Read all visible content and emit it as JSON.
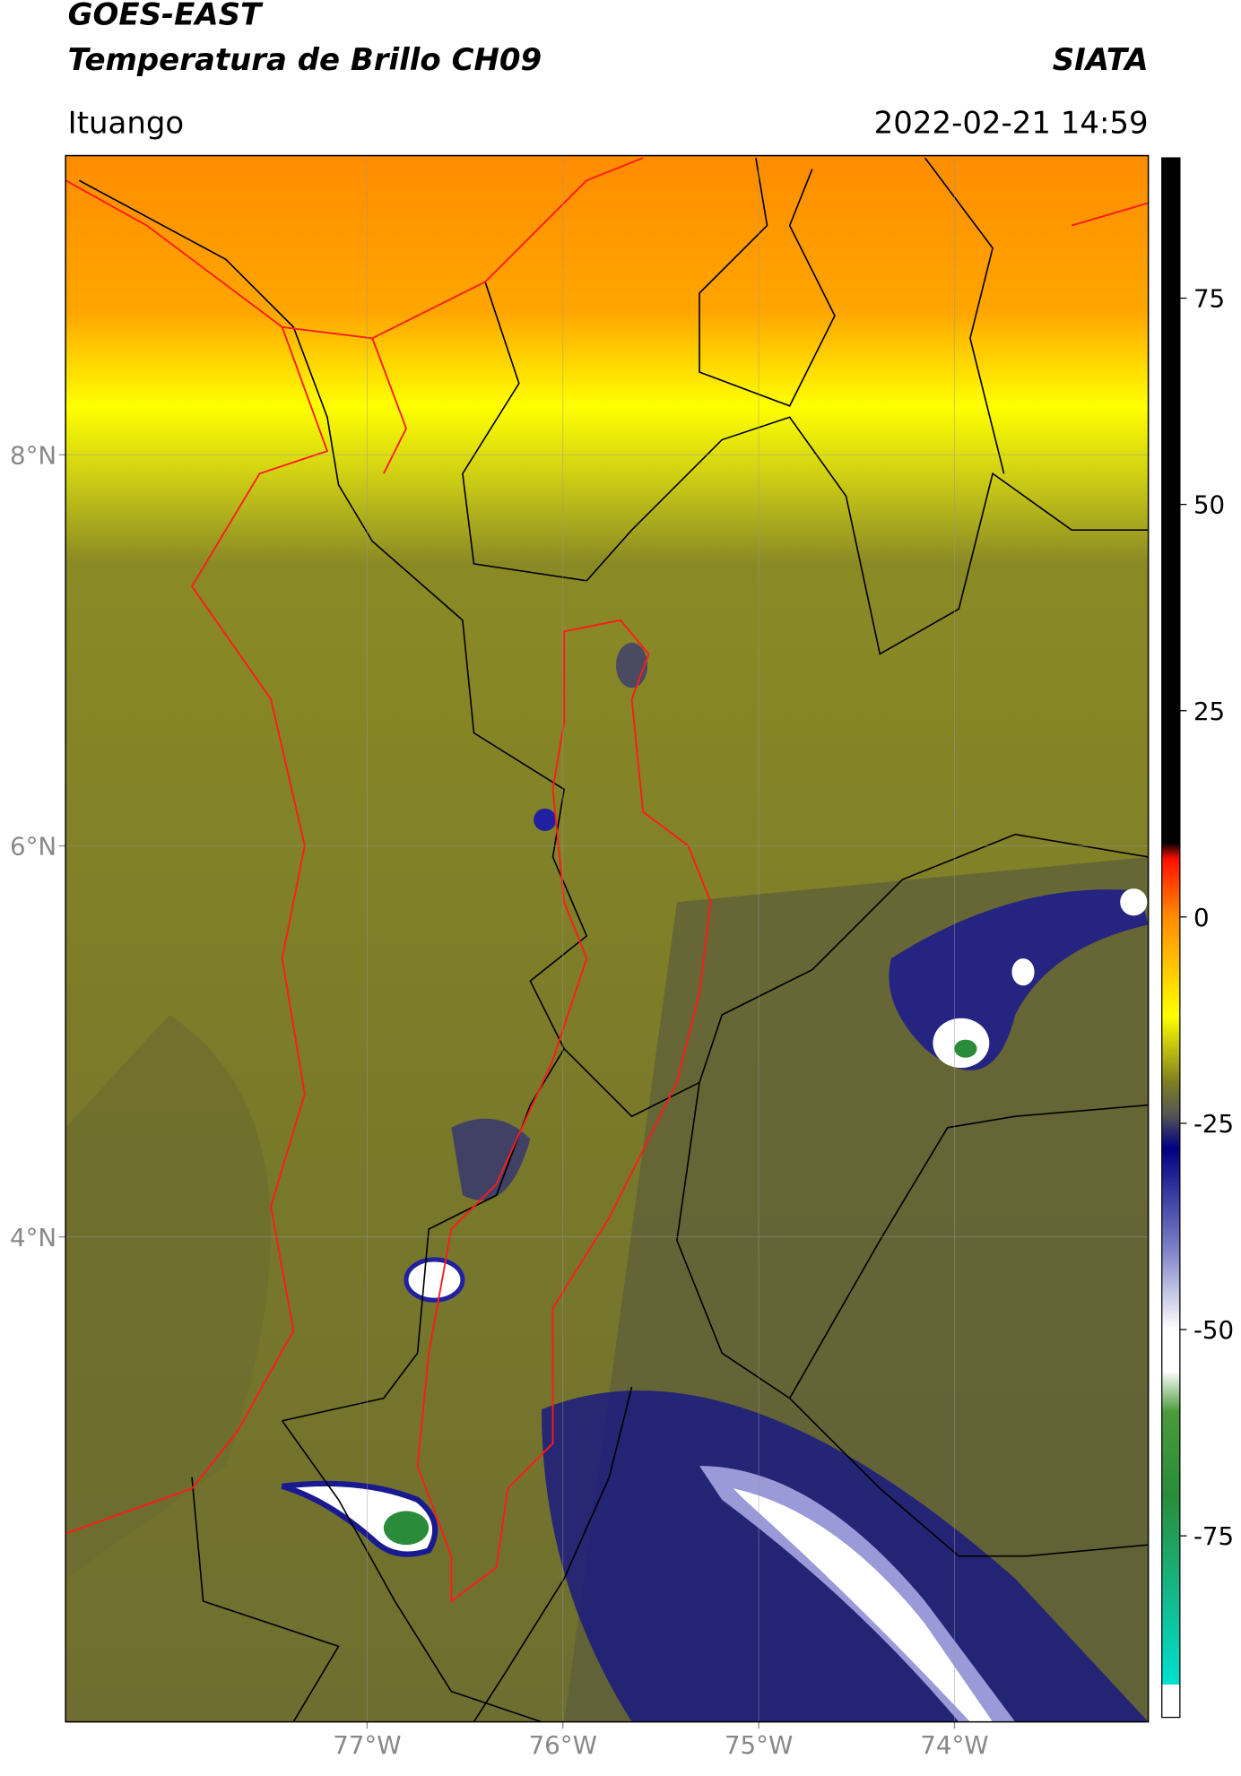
{
  "header": {
    "source": "GOES-EAST",
    "title": "Temperatura de Brillo CH09",
    "brand": "SIATA",
    "region": "Ituango",
    "timestamp": "2022-02-21 14:59"
  },
  "map": {
    "xlim": [
      -78.54,
      -73.01
    ],
    "ylim": [
      1.52,
      9.53
    ],
    "xticks": [
      {
        "value": -77,
        "label": "77°W"
      },
      {
        "value": -76,
        "label": "76°W"
      },
      {
        "value": -75,
        "label": "75°W"
      },
      {
        "value": -74,
        "label": "74°W"
      }
    ],
    "yticks": [
      {
        "value": 8,
        "label": "8°N"
      },
      {
        "value": 6,
        "label": "6°N"
      },
      {
        "value": 4,
        "label": "4°N"
      }
    ],
    "grid": true
  },
  "colorbar": {
    "lim": [
      -97,
      92
    ],
    "ticks": [
      75,
      50,
      25,
      0,
      -25,
      -50,
      -75
    ],
    "stops": [
      [
        -97,
        "#ffffff"
      ],
      [
        -93,
        "#ffffff"
      ],
      [
        -93,
        "#00e0d0"
      ],
      [
        -70,
        "#2a8c3a"
      ],
      [
        -60,
        "#4c9a3c"
      ],
      [
        -55,
        "#ffffff"
      ],
      [
        -50,
        "#ffffff"
      ],
      [
        -40,
        "#7a7ec4"
      ],
      [
        -28,
        "#000080"
      ],
      [
        -24,
        "#555555"
      ],
      [
        -20,
        "#7f7f22"
      ],
      [
        -12,
        "#ffff00"
      ],
      [
        0,
        "#ff8c00"
      ],
      [
        7,
        "#ff1000"
      ],
      [
        9,
        "#000000"
      ],
      [
        92,
        "#000000"
      ]
    ]
  }
}
